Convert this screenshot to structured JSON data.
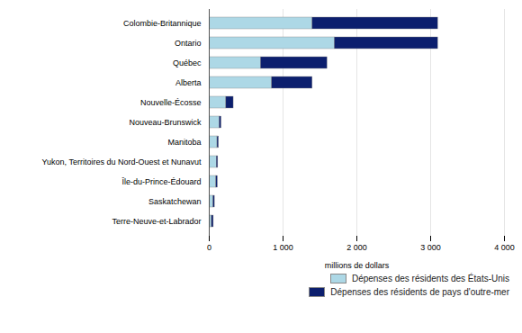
{
  "chart_data": {
    "type": "bar",
    "orientation": "horizontal",
    "stacked": true,
    "categories": [
      "Colombie-Britannique",
      "Ontario",
      "Québec",
      "Alberta",
      "Nouvelle-Écosse",
      "Nouveau-Brunswick",
      "Manitoba",
      "Yukon, Territoires du Nord-Ouest et Nunavut",
      "Île-du-Prince-Édouard",
      "Saskatchewan",
      "Terre-Neuve-et-Labrador"
    ],
    "series": [
      {
        "name": "Dépenses des résidents des États-Unis",
        "color": "#add8e6",
        "values": [
          1400,
          1700,
          700,
          850,
          230,
          140,
          110,
          100,
          95,
          55,
          35
        ]
      },
      {
        "name": "Dépenses des résidents de pays d'outre-mer",
        "color": "#0c1f6e",
        "values": [
          1700,
          1400,
          900,
          550,
          100,
          25,
          20,
          20,
          20,
          20,
          25
        ]
      }
    ],
    "xlabel": "millions de dollars",
    "xlim": [
      0,
      4000
    ],
    "xticks": [
      0,
      {
        "value": 1000,
        "label": "1 000"
      },
      {
        "value": 2000,
        "label": "2 000"
      },
      {
        "value": 3000,
        "label": "3 000"
      },
      {
        "value": 4000,
        "label": "4 000"
      }
    ],
    "grid": true,
    "legend": "lower right"
  }
}
